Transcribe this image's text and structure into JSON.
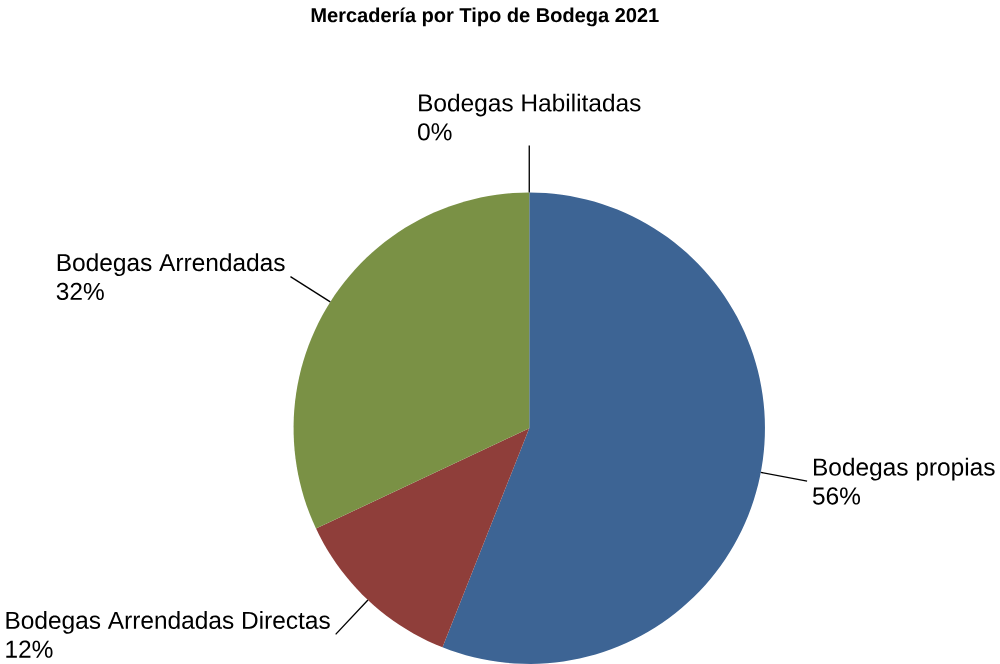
{
  "chart_data": {
    "type": "pie",
    "title": "Mercadería por Tipo de Bodega 2021",
    "categories": [
      "Bodegas propias",
      "Bodegas Arrendadas Directas",
      "Bodegas Arrendadas",
      "Bodegas Habilitadas"
    ],
    "values": [
      56,
      12,
      32,
      0
    ],
    "colors": [
      "#3d6494",
      "#8f3e3a",
      "#7a9145",
      "#4f81bd"
    ],
    "value_labels": [
      "56%",
      "12%",
      "32%",
      "0%"
    ]
  }
}
